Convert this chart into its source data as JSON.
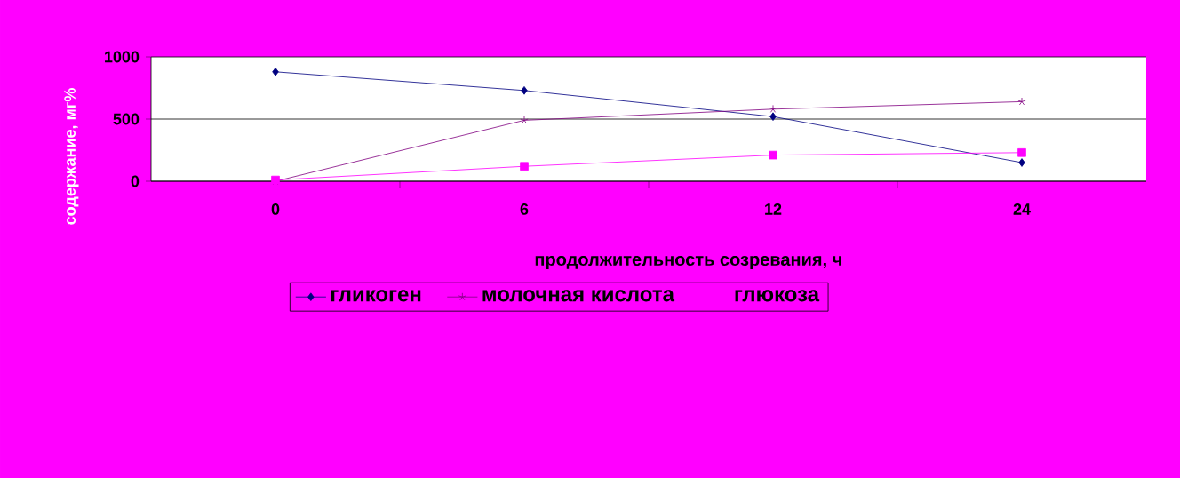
{
  "chart_data": {
    "type": "line",
    "xlabel": "продолжительность созревания, ч",
    "ylabel": "содержание, мг%",
    "categories": [
      "0",
      "6",
      "12",
      "24"
    ],
    "series": [
      {
        "name": "гликоген",
        "color": "#000080",
        "marker": "diamond",
        "values": [
          880,
          730,
          520,
          150
        ]
      },
      {
        "name": "молочная кислота",
        "color": "#800080",
        "marker": "cross",
        "values": [
          0,
          490,
          580,
          640
        ]
      },
      {
        "name": "глюкоза",
        "color": "#ff00ff",
        "marker": "square",
        "values": [
          10,
          120,
          210,
          230
        ]
      }
    ],
    "ylim": [
      0,
      1000
    ],
    "yticks": [
      0,
      500,
      1000
    ],
    "grid": "y",
    "legend": "bottom"
  }
}
